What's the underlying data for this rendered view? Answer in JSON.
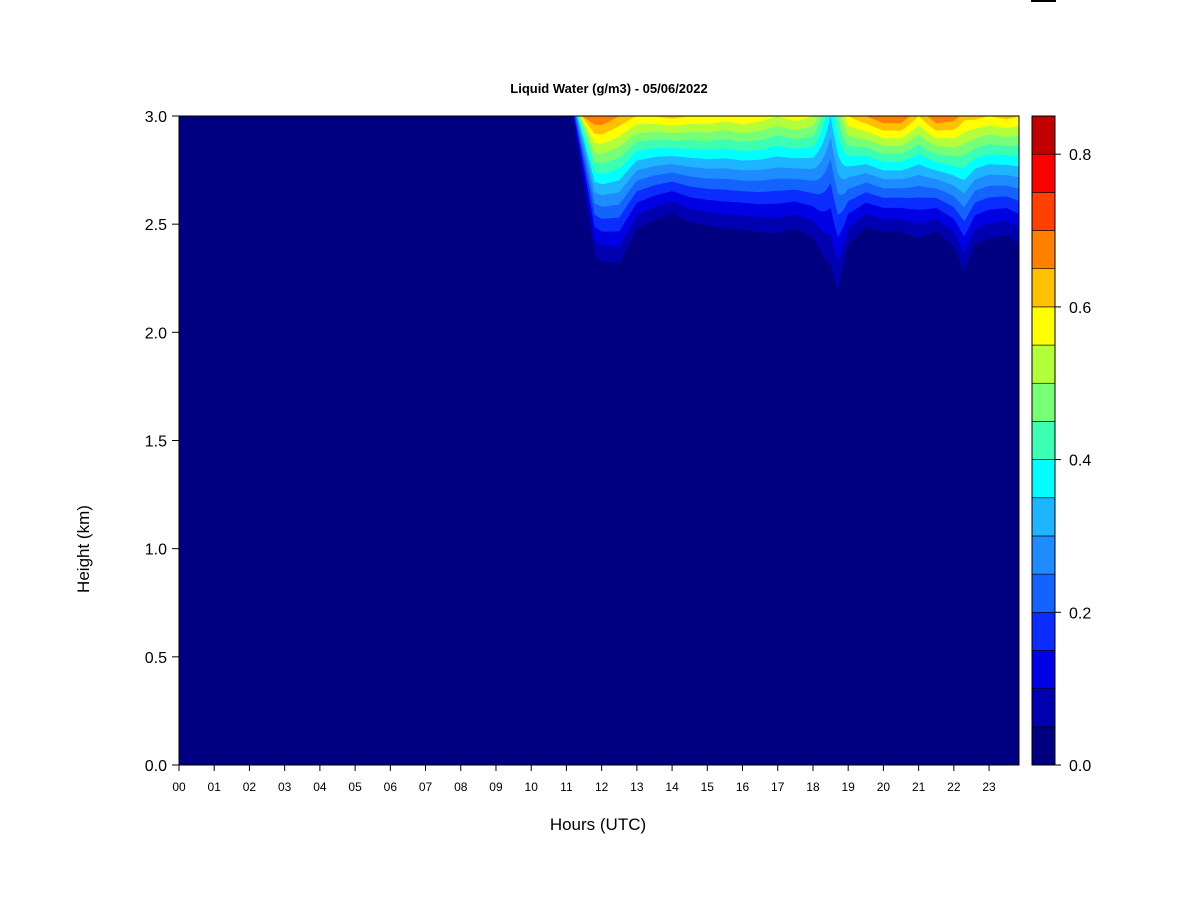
{
  "chart_data": {
    "type": "heatmap",
    "title": "Liquid Water (g/m3) - 05/06/2022",
    "xlabel": "Hours (UTC)",
    "ylabel": "Height (km)",
    "xlim": [
      0,
      23.85
    ],
    "ylim": [
      0,
      3.0
    ],
    "x_ticks": [
      "00",
      "01",
      "02",
      "03",
      "04",
      "05",
      "06",
      "07",
      "08",
      "09",
      "10",
      "11",
      "12",
      "13",
      "14",
      "15",
      "16",
      "17",
      "18",
      "19",
      "20",
      "21",
      "22",
      "23"
    ],
    "y_ticks": [
      "0.0",
      "0.5",
      "1.0",
      "1.5",
      "2.0",
      "2.5",
      "3.0"
    ],
    "colorbar": {
      "range": [
        0,
        0.85
      ],
      "ticks": [
        "0.0",
        "0.2",
        "0.4",
        "0.6",
        "0.8"
      ],
      "levels": [
        0,
        0.05,
        0.1,
        0.15,
        0.2,
        0.25,
        0.3,
        0.35,
        0.4,
        0.45,
        0.5,
        0.55,
        0.6,
        0.65,
        0.7,
        0.75,
        0.8,
        0.85
      ],
      "colors": [
        "#000080",
        "#0000b0",
        "#0000e4",
        "#0a2cff",
        "#1463ff",
        "#1e8cff",
        "#1eb4ff",
        "#00ffff",
        "#3cffb4",
        "#78ff78",
        "#b4ff3c",
        "#ffff00",
        "#ffc000",
        "#ff8000",
        "#ff4000",
        "#ff0000",
        "#c00000"
      ],
      "top_color": "#800000"
    },
    "background_color": "#000080",
    "cloud": {
      "onset_hour": 11.15,
      "full_hour": 11.8,
      "times": [
        11.5,
        12.0,
        12.5,
        13.0,
        13.5,
        14.0,
        14.5,
        15.0,
        15.5,
        16.0,
        16.5,
        17.0,
        17.5,
        18.0,
        18.5,
        18.7,
        19.0,
        19.5,
        20.0,
        20.5,
        21.0,
        21.5,
        22.0,
        22.3,
        22.6,
        23.0,
        23.5,
        23.85
      ],
      "base_km": [
        2.3,
        2.22,
        2.2,
        2.38,
        2.43,
        2.47,
        2.42,
        2.4,
        2.38,
        2.38,
        2.36,
        2.35,
        2.38,
        2.33,
        2.1,
        2.0,
        2.3,
        2.4,
        2.38,
        2.38,
        2.33,
        2.38,
        2.3,
        2.15,
        2.3,
        2.33,
        2.35,
        2.3
      ],
      "top_lwc": [
        0.7,
        0.7,
        0.65,
        0.6,
        0.6,
        0.62,
        0.6,
        0.6,
        0.58,
        0.6,
        0.58,
        0.55,
        0.58,
        0.55,
        0.35,
        0.45,
        0.6,
        0.65,
        0.7,
        0.7,
        0.6,
        0.7,
        0.68,
        0.62,
        0.62,
        0.6,
        0.62,
        0.6
      ]
    }
  }
}
